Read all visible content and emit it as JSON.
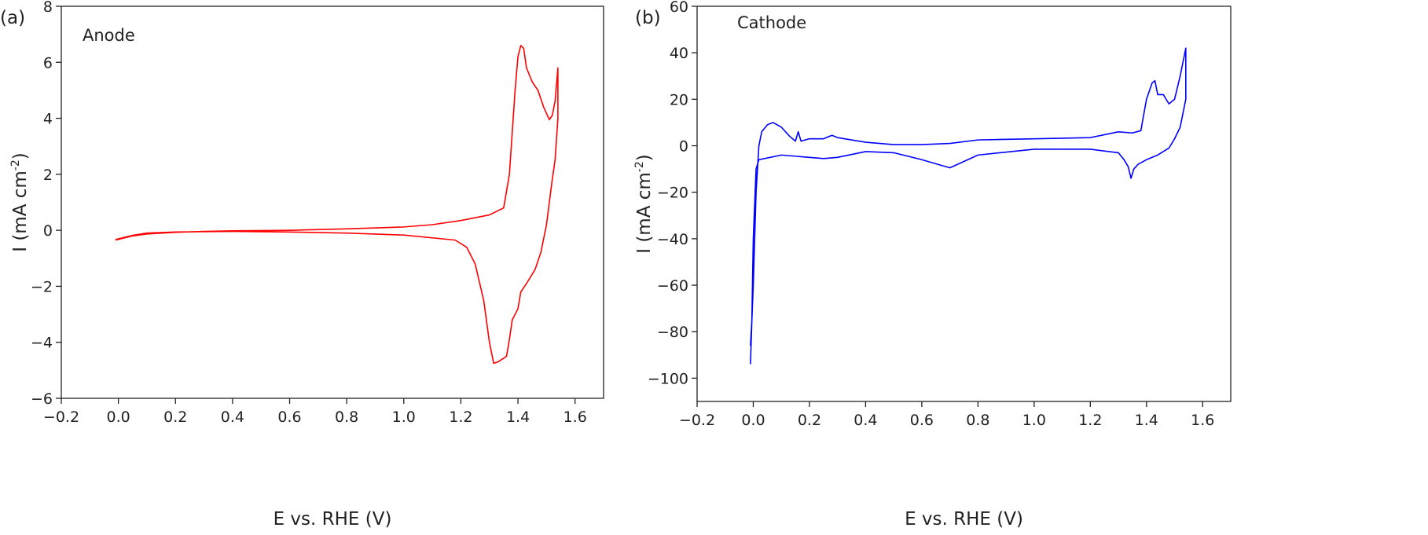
{
  "chart_data": [
    {
      "type": "line",
      "panel_label": "(a)",
      "annotation": "Anode",
      "xlabel": "E vs. RHE (V)",
      "ylabel": [
        "I (mA cm",
        "-2",
        ")"
      ],
      "color": "#ff0000",
      "xlim": [
        -0.2,
        1.7
      ],
      "ylim": [
        -6,
        8
      ],
      "xticks": [
        {
          "value": -0.2,
          "label": "−0.2"
        },
        {
          "value": 0,
          "label": "0.0"
        },
        0.2,
        0.4,
        0.6,
        0.8,
        {
          "value": 1,
          "label": "1.0"
        },
        1.2,
        1.4,
        1.6
      ],
      "yticks": [
        {
          "value": -6,
          "label": "−6"
        },
        {
          "value": -4,
          "label": "−4"
        },
        {
          "value": -2,
          "label": "−2"
        },
        0,
        2,
        4,
        6,
        8
      ],
      "x": [
        -0.01,
        0.05,
        0.1,
        0.2,
        0.3,
        0.4,
        0.6,
        0.8,
        1.0,
        1.1,
        1.2,
        1.3,
        1.35,
        1.37,
        1.38,
        1.39,
        1.4,
        1.41,
        1.42,
        1.43,
        1.45,
        1.47,
        1.49,
        1.51,
        1.52,
        1.53,
        1.54,
        1.54,
        1.53,
        1.52,
        1.51,
        1.5,
        1.48,
        1.46,
        1.43,
        1.41,
        1.4,
        1.38,
        1.37,
        1.36,
        1.345,
        1.33,
        1.315,
        1.3,
        1.28,
        1.25,
        1.22,
        1.18,
        1.0,
        0.8,
        0.6,
        0.4,
        0.2,
        0.1,
        0.05,
        -0.01
      ],
      "values": [
        -0.35,
        -0.2,
        -0.13,
        -0.07,
        -0.04,
        -0.02,
        0.0,
        0.05,
        0.12,
        0.2,
        0.35,
        0.55,
        0.8,
        2,
        3.5,
        5,
        6.2,
        6.6,
        6.5,
        5.8,
        5.3,
        5.0,
        4.4,
        3.95,
        4.1,
        4.6,
        5.8,
        4.0,
        2.5,
        1.8,
        1.0,
        0.2,
        -0.8,
        -1.4,
        -1.9,
        -2.2,
        -2.8,
        -3.2,
        -3.9,
        -4.5,
        -4.6,
        -4.7,
        -4.75,
        -4.0,
        -2.5,
        -1.2,
        -0.6,
        -0.35,
        -0.17,
        -0.1,
        -0.06,
        -0.04,
        -0.06,
        -0.1,
        -0.18,
        -0.33
      ]
    },
    {
      "type": "line",
      "panel_label": "(b)",
      "annotation": "Cathode",
      "xlabel": "E vs. RHE (V)",
      "ylabel": [
        "I (mA cm",
        "-2",
        ")"
      ],
      "color": "#0000ff",
      "xlim": [
        -0.2,
        1.7
      ],
      "ylim": [
        -110,
        60
      ],
      "xticks": [
        {
          "value": -0.2,
          "label": "−0.2"
        },
        {
          "value": 0,
          "label": "0.0"
        },
        0.2,
        0.4,
        0.6,
        0.8,
        {
          "value": 1,
          "label": "1.0"
        },
        1.2,
        1.4,
        1.6
      ],
      "yticks": [
        {
          "value": -100,
          "label": "−100"
        },
        {
          "value": -80,
          "label": "−80"
        },
        {
          "value": -60,
          "label": "−60"
        },
        {
          "value": -40,
          "label": "−40"
        },
        {
          "value": -20,
          "label": "−20"
        },
        0,
        20,
        40,
        60
      ],
      "x": [
        -0.01,
        -0.005,
        0.0,
        0.005,
        0.01,
        0.02,
        0.03,
        0.05,
        0.07,
        0.1,
        0.13,
        0.15,
        0.16,
        0.17,
        0.2,
        0.25,
        0.28,
        0.3,
        0.4,
        0.5,
        0.6,
        0.7,
        0.8,
        1.0,
        1.2,
        1.3,
        1.35,
        1.38,
        1.4,
        1.42,
        1.43,
        1.44,
        1.46,
        1.48,
        1.5,
        1.52,
        1.54,
        1.54,
        1.52,
        1.5,
        1.48,
        1.44,
        1.4,
        1.37,
        1.355,
        1.345,
        1.335,
        1.32,
        1.3,
        1.2,
        1.0,
        0.8,
        0.7,
        0.6,
        0.5,
        0.4,
        0.3,
        0.25,
        0.1,
        0.02,
        0.01,
        0.0,
        -0.005,
        -0.01
      ],
      "values": [
        -86,
        -75,
        -60,
        -40,
        -20,
        0,
        6,
        9,
        10,
        8,
        4,
        2,
        6,
        2,
        3,
        3,
        4.5,
        3.5,
        1.5,
        0.5,
        0.5,
        1,
        2.5,
        3,
        3.5,
        6,
        5.5,
        6.5,
        20,
        27,
        28,
        22,
        22,
        18,
        20,
        30,
        42,
        20,
        8,
        3,
        -1,
        -4,
        -6,
        -8,
        -10,
        -14,
        -9,
        -6,
        -3,
        -1.5,
        -1.5,
        -4,
        -9.5,
        -6,
        -3,
        -2.5,
        -5,
        -5.5,
        -4,
        -6,
        -10,
        -40,
        -75,
        -94
      ]
    }
  ]
}
